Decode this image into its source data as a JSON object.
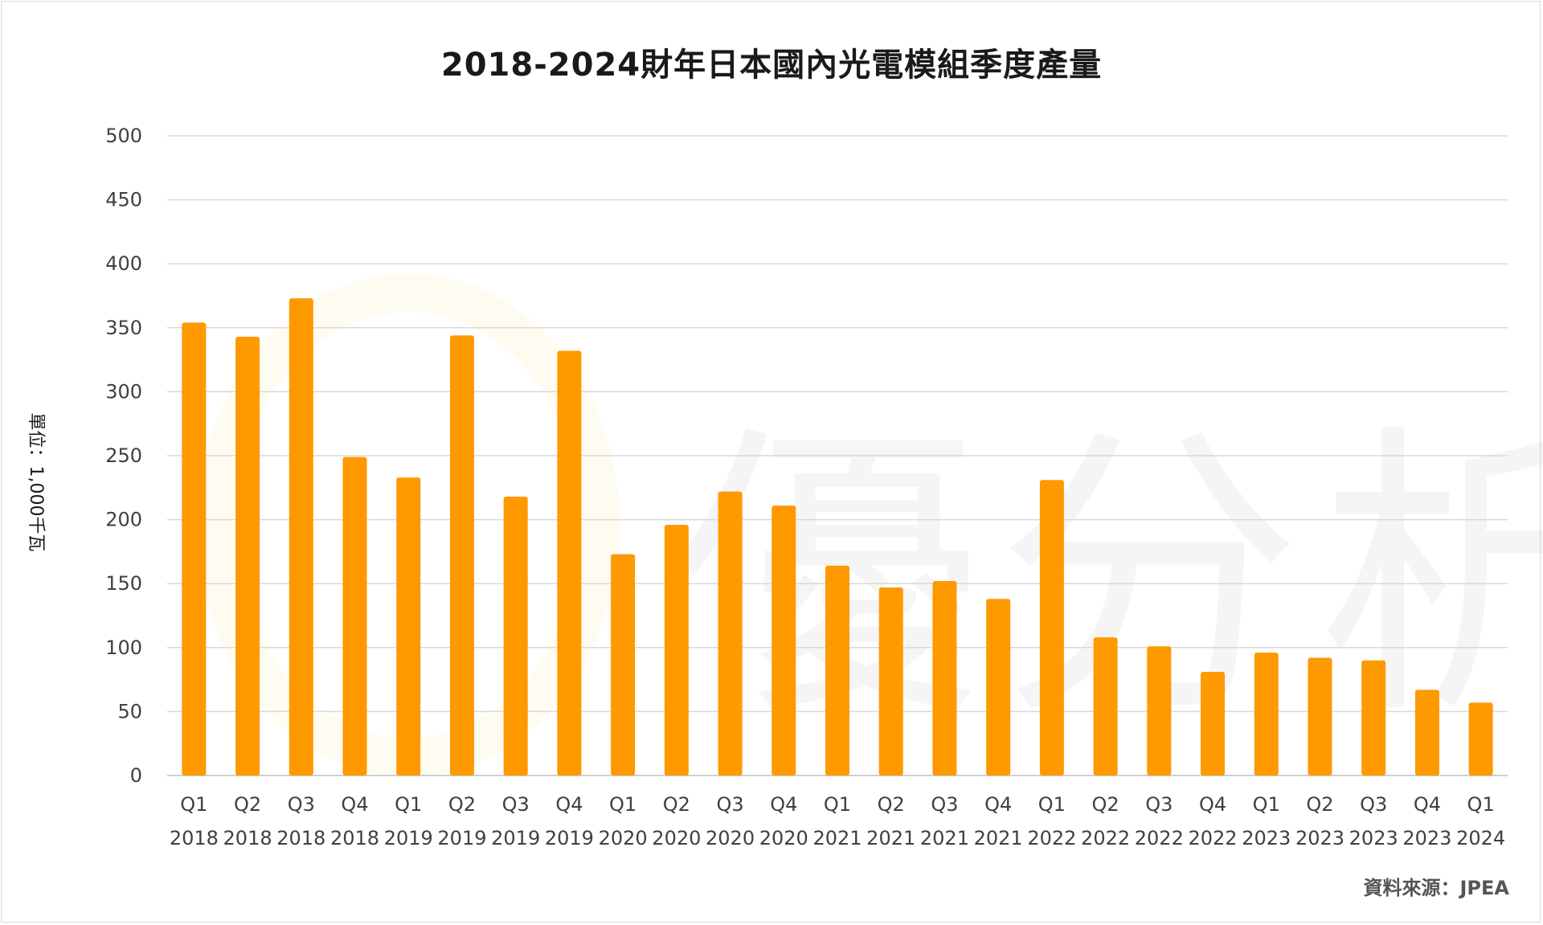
{
  "chart_data": {
    "type": "bar",
    "title": "2018-2024財年日本國內光電模組季度產量",
    "ylabel": "單位：1,000千瓦",
    "source": "資料來源：JPEA",
    "watermark": "優分析",
    "ylim": [
      0,
      500
    ],
    "yticks": [
      0,
      50,
      100,
      150,
      200,
      250,
      300,
      350,
      400,
      450,
      500
    ],
    "grid": true,
    "bar_color": "#FF9900",
    "categories": [
      {
        "q": "Q1",
        "y": "2018"
      },
      {
        "q": "Q2",
        "y": "2018"
      },
      {
        "q": "Q3",
        "y": "2018"
      },
      {
        "q": "Q4",
        "y": "2018"
      },
      {
        "q": "Q1",
        "y": "2019"
      },
      {
        "q": "Q2",
        "y": "2019"
      },
      {
        "q": "Q3",
        "y": "2019"
      },
      {
        "q": "Q4",
        "y": "2019"
      },
      {
        "q": "Q1",
        "y": "2020"
      },
      {
        "q": "Q2",
        "y": "2020"
      },
      {
        "q": "Q3",
        "y": "2020"
      },
      {
        "q": "Q4",
        "y": "2020"
      },
      {
        "q": "Q1",
        "y": "2021"
      },
      {
        "q": "Q2",
        "y": "2021"
      },
      {
        "q": "Q3",
        "y": "2021"
      },
      {
        "q": "Q4",
        "y": "2021"
      },
      {
        "q": "Q1",
        "y": "2022"
      },
      {
        "q": "Q2",
        "y": "2022"
      },
      {
        "q": "Q3",
        "y": "2022"
      },
      {
        "q": "Q4",
        "y": "2022"
      },
      {
        "q": "Q1",
        "y": "2023"
      },
      {
        "q": "Q2",
        "y": "2023"
      },
      {
        "q": "Q3",
        "y": "2023"
      },
      {
        "q": "Q4",
        "y": "2023"
      },
      {
        "q": "Q1",
        "y": "2024"
      }
    ],
    "values": [
      354,
      343,
      373,
      249,
      233,
      344,
      218,
      332,
      173,
      196,
      222,
      211,
      164,
      147,
      152,
      138,
      231,
      108,
      101,
      81,
      96,
      92,
      90,
      67,
      57
    ]
  }
}
